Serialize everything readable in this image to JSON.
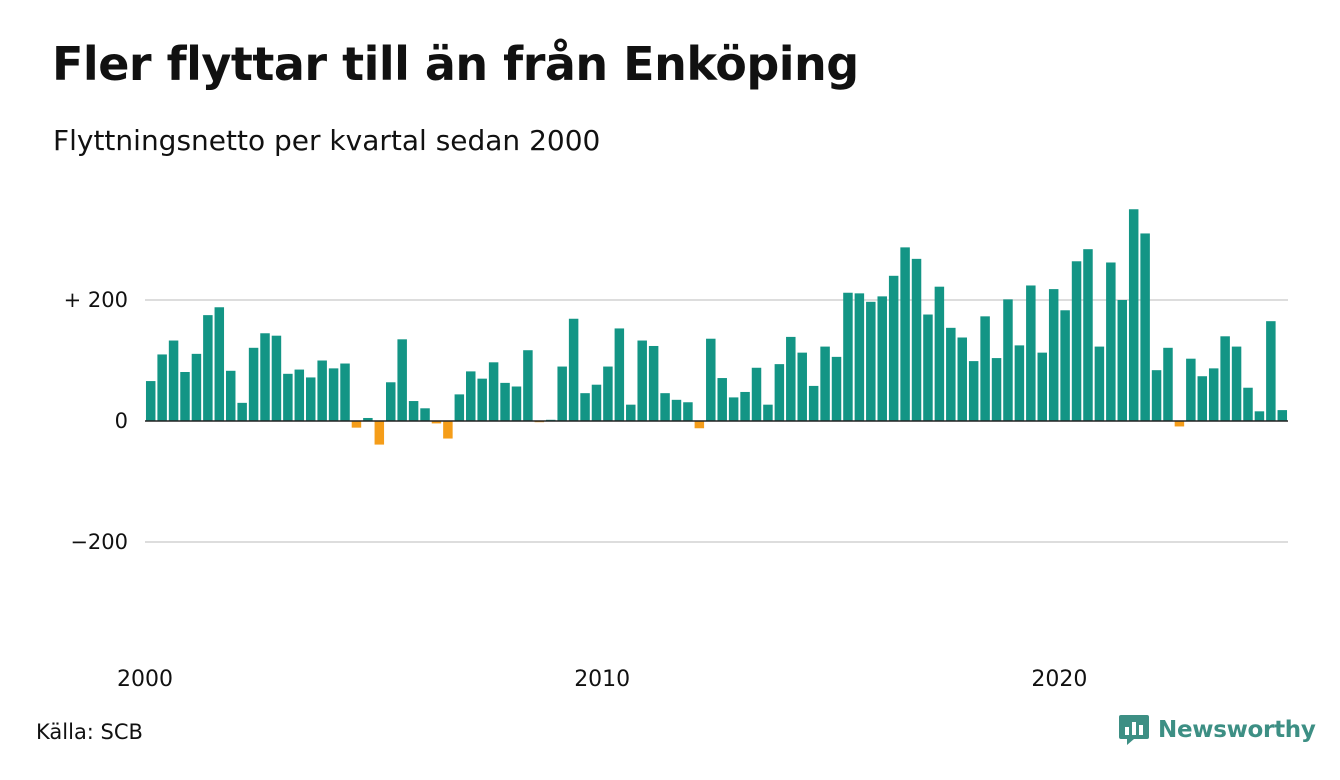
{
  "title": "Fler flyttar till än från Enköping",
  "subtitle": "Flyttningsnetto per kvartal sedan 2000",
  "source": "Källa: SCB",
  "brand": {
    "name": "Newsworthy",
    "icon": "newsworthy-logo-icon",
    "color": "#3d8f84"
  },
  "colors": {
    "positive": "#139585",
    "negative": "#f59d19",
    "grid": "#dddddd",
    "zero_line": "#222222"
  },
  "chart_data": {
    "type": "bar",
    "title": "Fler flyttar till än från Enköping",
    "subtitle": "Flyttningsnetto per kvartal sedan 2000",
    "x_start": "2000 Q1",
    "x_ticks": [
      "2000",
      "2010",
      "2020"
    ],
    "y_ticks": [
      {
        "value": 200,
        "label": "+ 200"
      },
      {
        "value": 0,
        "label": "0"
      },
      {
        "value": -200,
        "label": "−200"
      }
    ],
    "ylim": [
      -380,
      350
    ],
    "grid": true,
    "values": [
      66,
      110,
      133,
      81,
      111,
      175,
      188,
      83,
      30,
      121,
      145,
      141,
      78,
      85,
      72,
      100,
      87,
      95,
      -11,
      5,
      -39,
      64,
      135,
      33,
      21,
      -4,
      -29,
      44,
      82,
      70,
      97,
      63,
      57,
      117,
      -2,
      2,
      90,
      169,
      46,
      60,
      90,
      153,
      27,
      133,
      124,
      46,
      35,
      31,
      -12,
      136,
      71,
      39,
      48,
      88,
      27,
      94,
      139,
      113,
      58,
      123,
      106,
      212,
      211,
      197,
      206,
      240,
      287,
      268,
      176,
      222,
      154,
      138,
      99,
      173,
      104,
      201,
      125,
      224,
      113,
      218,
      183,
      264,
      284,
      123,
      262,
      200,
      350,
      310,
      84,
      121,
      -9,
      103,
      74,
      87,
      140,
      123,
      55,
      16,
      165,
      18
    ]
  }
}
